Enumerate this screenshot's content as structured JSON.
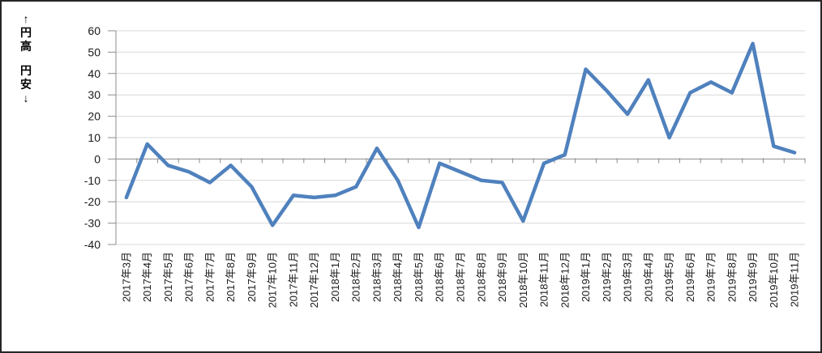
{
  "chart_data": {
    "type": "line",
    "title": "",
    "y_axis_title_top": "↑円高",
    "y_axis_title_bottom": "円安↓",
    "categories": [
      "2017年3月",
      "2017年4月",
      "2017年5月",
      "2017年6月",
      "2017年7月",
      "2017年8月",
      "2017年9月",
      "2017年10月",
      "2017年11月",
      "2017年12月",
      "2018年1月",
      "2018年2月",
      "2018年3月",
      "2018年4月",
      "2018年5月",
      "2018年6月",
      "2018年7月",
      "2018年8月",
      "2018年9月",
      "2018年10月",
      "2018年11月",
      "2018年12月",
      "2019年1月",
      "2019年2月",
      "2019年3月",
      "2019年4月",
      "2019年5月",
      "2019年6月",
      "2019年7月",
      "2019年8月",
      "2019年9月",
      "2019年10月",
      "2019年11月"
    ],
    "values": [
      -18,
      7,
      -3,
      -6,
      -11,
      -3,
      -13,
      -31,
      -17,
      -18,
      -17,
      -13,
      5,
      -10,
      -32,
      -2,
      -6,
      -10,
      -11,
      -29,
      -2,
      2,
      42,
      32,
      21,
      37,
      10,
      31,
      36,
      31,
      54,
      6,
      3
    ],
    "yticks": [
      60,
      50,
      40,
      30,
      20,
      10,
      0,
      -10,
      -20,
      -30,
      -40
    ],
    "ylim": [
      -40,
      60
    ],
    "grid": true,
    "legend": "none",
    "colors": {
      "line": "#4F81BD",
      "grid": "#D9D9D9",
      "axis": "#8C8C8C",
      "text": "#1a1a1a"
    }
  }
}
